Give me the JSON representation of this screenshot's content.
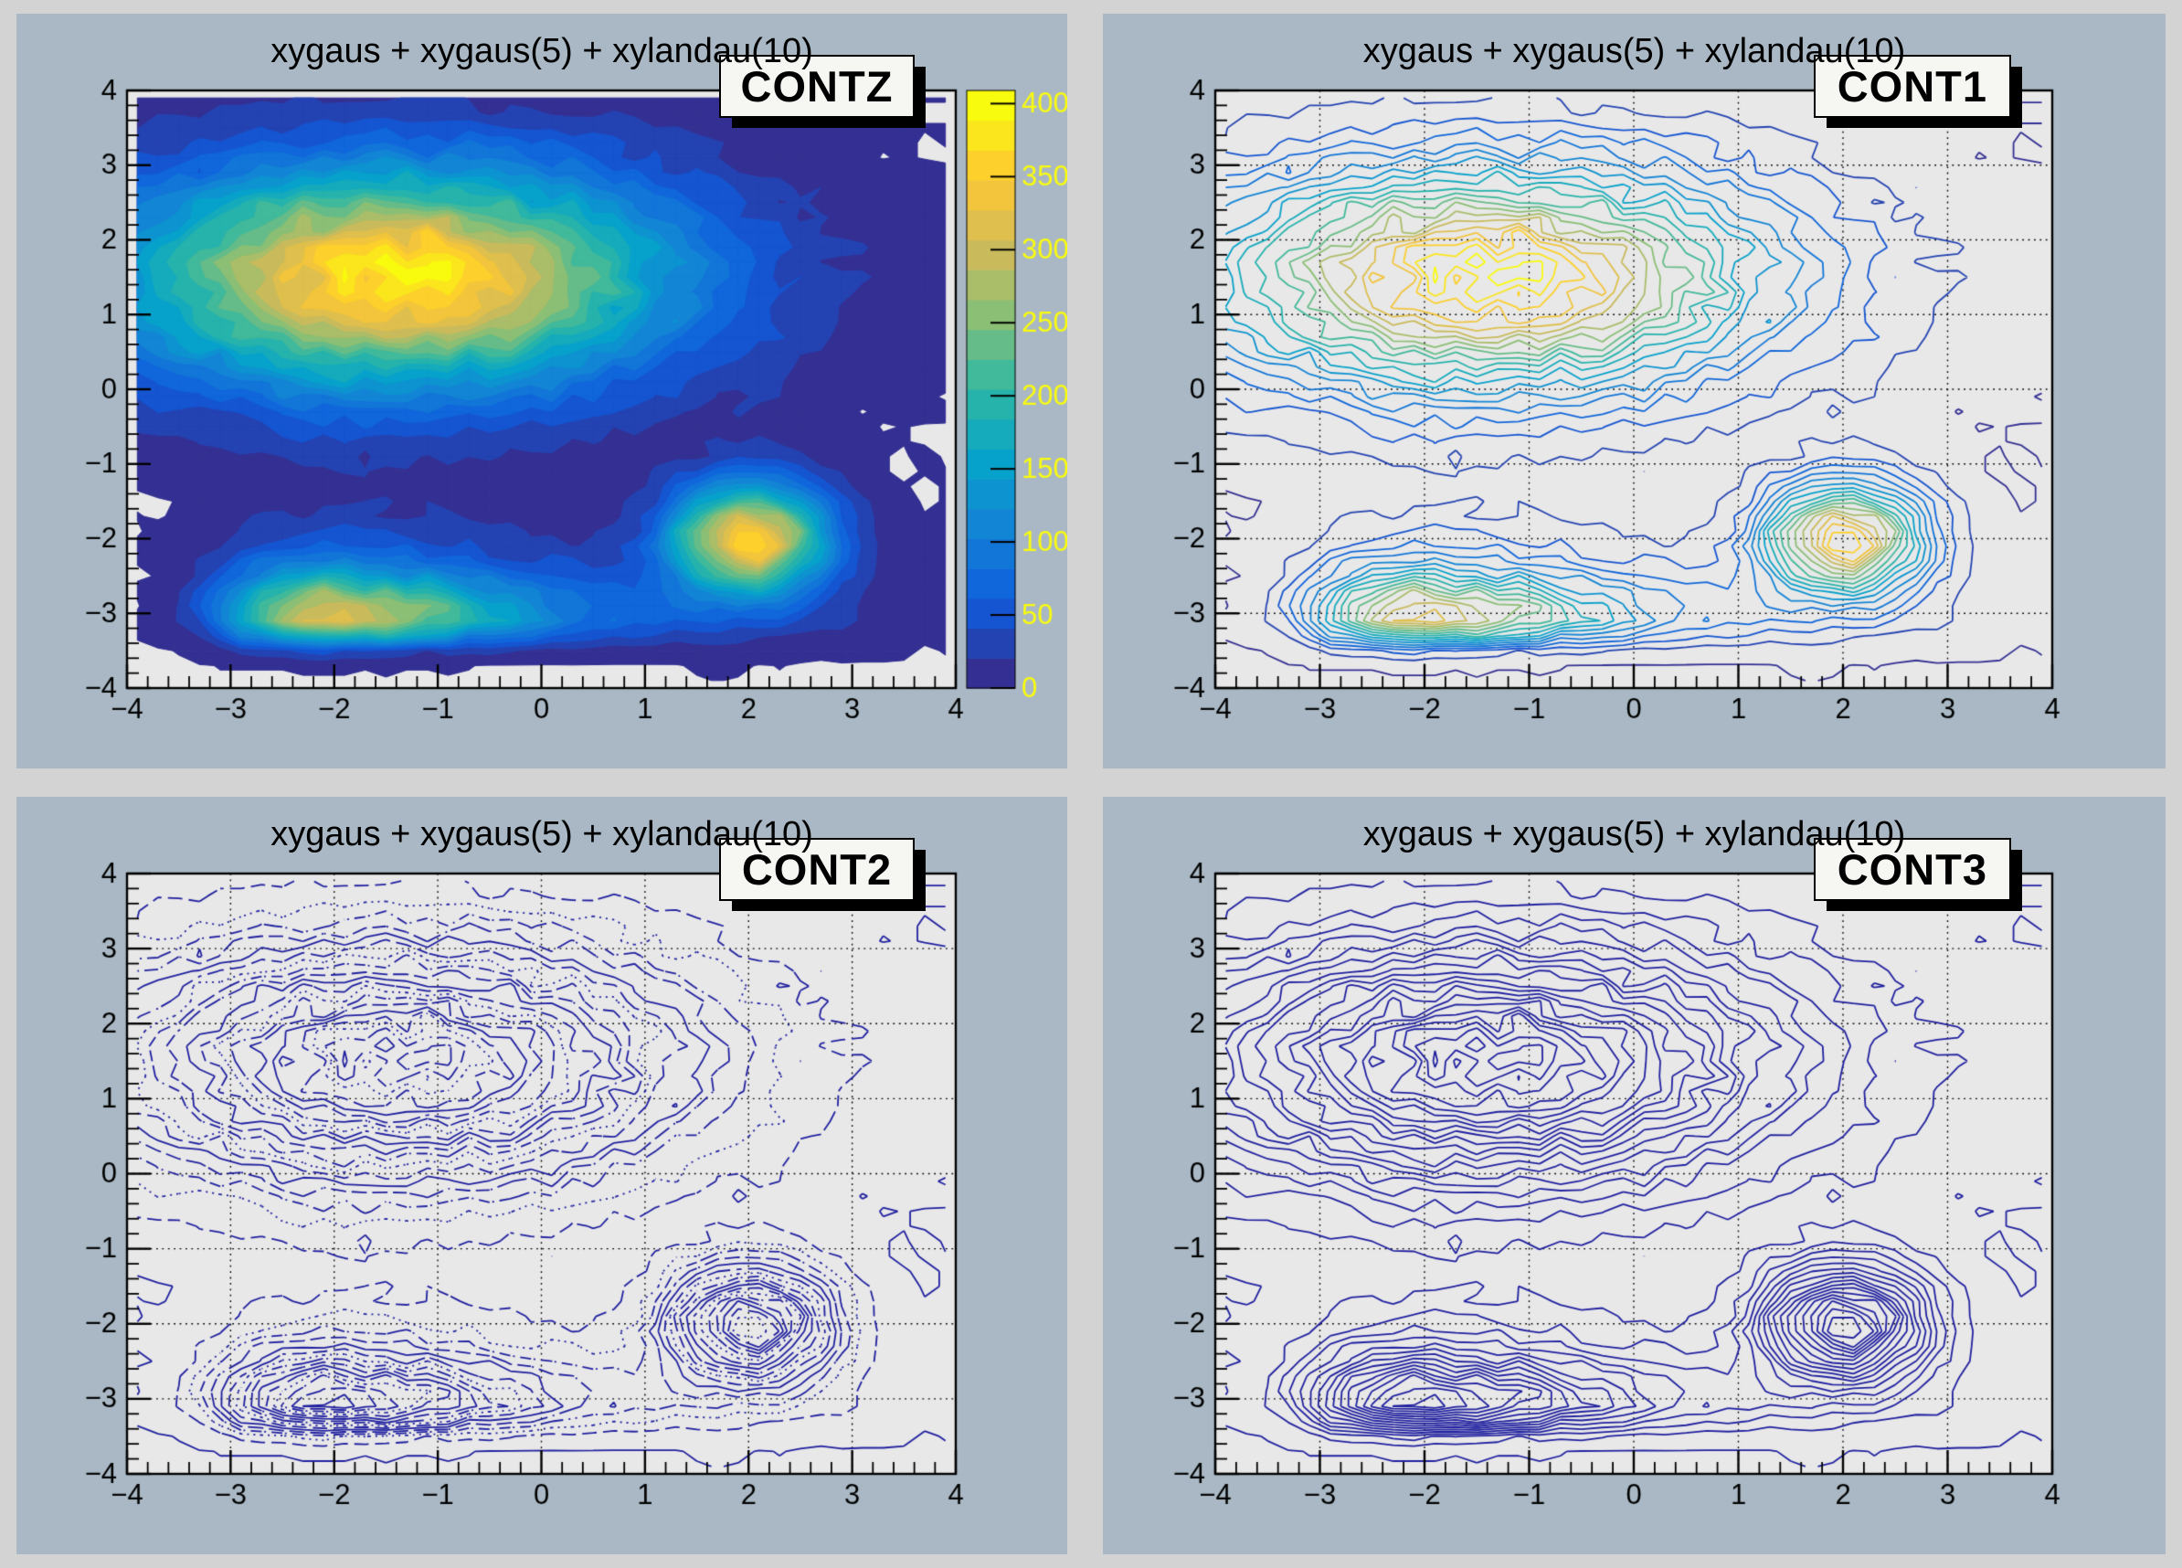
{
  "canvas": {
    "background": "#d3d3d3",
    "pad_background": "#a9b8c4",
    "frame_background": "#e8e8e8",
    "frame_border": "#000000",
    "text_color": "#000000"
  },
  "pads": [
    {
      "title": "xygaus + xygaus(5) + xylandau(10)",
      "label": "CONTZ",
      "mode": "CONTZ",
      "grid": false,
      "palette_bar": true
    },
    {
      "title": "xygaus + xygaus(5) + xylandau(10)",
      "label": "CONT1",
      "mode": "CONT1",
      "grid": true,
      "palette_bar": false
    },
    {
      "title": "xygaus + xygaus(5) + xylandau(10)",
      "label": "CONT2",
      "mode": "CONT2",
      "grid": true,
      "palette_bar": false
    },
    {
      "title": "xygaus + xygaus(5) + xylandau(10)",
      "label": "CONT3",
      "mode": "CONT3",
      "grid": true,
      "palette_bar": false
    }
  ],
  "chart_data": {
    "type": "heatmap",
    "subtype": "2d-histogram-contours",
    "title": "xygaus + xygaus(5) + xylandau(10)",
    "function": "xygaus + xygaus(5) + xylandau(10)",
    "draw_options": [
      "CONTZ",
      "CONT1",
      "CONT2",
      "CONT3"
    ],
    "x_range": [
      -4,
      4
    ],
    "y_range": [
      -4,
      4
    ],
    "x_ticks": [
      -4,
      -3,
      -2,
      -1,
      0,
      1,
      2,
      3,
      4
    ],
    "y_ticks": [
      -4,
      -3,
      -2,
      -1,
      0,
      1,
      2,
      3,
      4
    ],
    "x_tick_labels": [
      "−4",
      "−3",
      "−2",
      "−1",
      "0",
      "1",
      "2",
      "3",
      "4"
    ],
    "y_tick_labels": [
      "−4",
      "−3",
      "−2",
      "−1",
      "0",
      "1",
      "2",
      "3",
      "4"
    ],
    "minor_per_major": 5,
    "z_tick_values": [
      0,
      50,
      100,
      150,
      200,
      250,
      300,
      350,
      400
    ],
    "z_tick_labels": [
      "0",
      "50",
      "100",
      "150",
      "200",
      "250",
      "300",
      "350",
      "400"
    ],
    "z_max": 409,
    "n_contours": 20,
    "bins": 40,
    "peaks": [
      {
        "type": "gaussian",
        "amplitude": 409,
        "mean": [
          -1.4,
          1.5
        ],
        "sigma": [
          1.8,
          1.0
        ]
      },
      {
        "type": "gaussian",
        "amplitude": 394,
        "mean": [
          2.0,
          -2.0
        ],
        "sigma": [
          0.5,
          0.5
        ]
      },
      {
        "type": "landau",
        "amplitude": 342,
        "mpv": [
          -2.0,
          -3.0
        ],
        "sigma": [
          0.7,
          0.3
        ]
      }
    ],
    "noise": {
      "kind": "poisson",
      "seed": 77
    },
    "palette_name": "bird",
    "palette_stops": [
      "#343093",
      "#0f5cdd",
      "#1481d6",
      "#06a4ca",
      "#2eb7a4",
      "#87bf77",
      "#d1bb59",
      "#fec832",
      "#f9fb0e"
    ],
    "line_color": "#2020a0",
    "grid_color": "#000000",
    "grid_style": "dotted",
    "legend_position": "none"
  }
}
